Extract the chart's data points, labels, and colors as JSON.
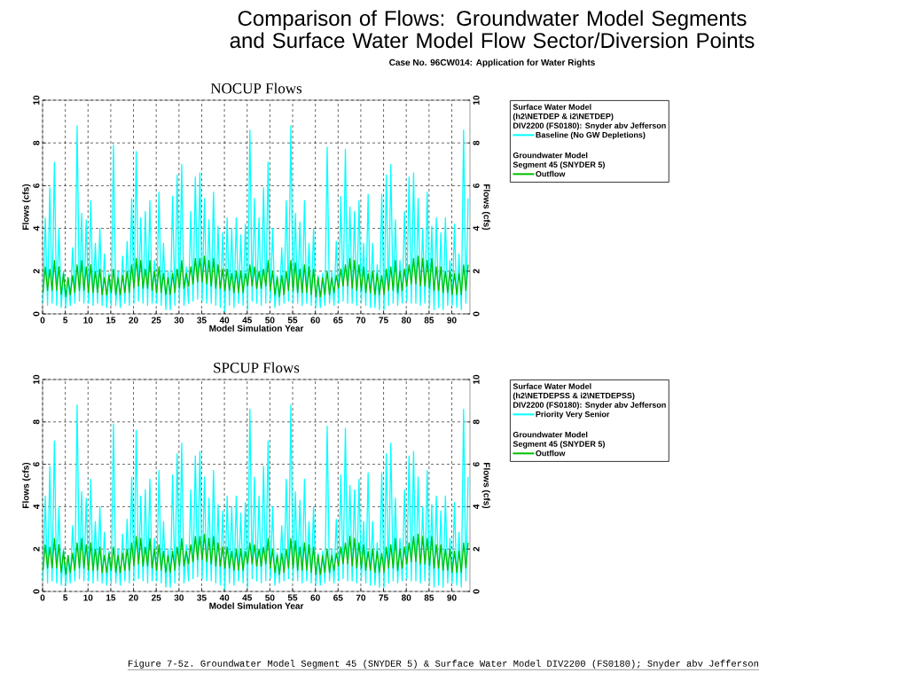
{
  "chart_data": [
    {
      "type": "line",
      "title": "NOCUP Flows",
      "xlabel": "Model Simulation Year",
      "ylabel": "Flows (cfs)",
      "y2label": "Flows (cfs)",
      "xlim": [
        0,
        94
      ],
      "xticks": [
        0,
        5,
        10,
        15,
        20,
        25,
        30,
        35,
        40,
        45,
        50,
        55,
        60,
        65,
        70,
        75,
        80,
        85,
        90
      ],
      "ylim": [
        0,
        10
      ],
      "yticks": [
        0,
        2,
        4,
        6,
        8,
        10
      ],
      "y2lim": [
        0,
        10
      ],
      "y2ticks": [
        0,
        2,
        4,
        6,
        8,
        10
      ],
      "grid": true,
      "legend": "right",
      "marker": "none",
      "line_style": "solid",
      "annotations": [
        "Surface Water Model",
        "(h2\\NETDEP & i2\\NETDEP)",
        "DIV2200 (FS0180): Snyder abv Jefferson",
        "Groundwater Model",
        "Segment 45 (SNYDER 5)"
      ],
      "x": [
        0.1,
        0.6,
        1.1,
        1.6,
        2.1,
        2.6,
        3.1,
        3.6,
        4.1,
        4.6,
        5.1,
        5.6,
        6.1,
        6.6,
        7.1,
        7.6,
        8.1,
        8.6,
        9.1,
        9.6,
        10.1,
        10.6,
        11.1,
        11.6,
        12.1,
        12.6,
        13.1,
        13.6,
        14.1,
        14.6,
        15.1,
        15.6,
        16.1,
        16.6,
        17.1,
        17.6,
        18.1,
        18.6,
        19.1,
        19.6,
        20.1,
        20.6,
        21.1,
        21.6,
        22.1,
        22.6,
        23.1,
        23.6,
        24.1,
        24.6,
        25.1,
        25.6,
        26.1,
        26.6,
        27.1,
        27.6,
        28.1,
        28.6,
        29.1,
        29.6,
        30.1,
        30.6,
        31.1,
        31.6,
        32.1,
        32.6,
        33.1,
        33.6,
        34.1,
        34.6,
        35.1,
        35.6,
        36.1,
        36.6,
        37.1,
        37.6,
        38.1,
        38.6,
        39.1,
        39.6,
        40.1,
        40.6,
        41.1,
        41.6,
        42.1,
        42.6,
        43.1,
        43.6,
        44.1,
        44.6,
        45.1,
        45.6,
        46.1,
        46.6,
        47.1,
        47.6,
        48.1,
        48.6,
        49.1,
        49.6,
        50.1,
        50.6,
        51.1,
        51.6,
        52.1,
        52.6,
        53.1,
        53.6,
        54.1,
        54.6,
        55.1,
        55.6,
        56.1,
        56.6,
        57.1,
        57.6,
        58.1,
        58.6,
        59.1,
        59.6,
        60.1,
        60.6,
        61.1,
        61.6,
        62.1,
        62.6,
        63.1,
        63.6,
        64.1,
        64.6,
        65.1,
        65.6,
        66.1,
        66.6,
        67.1,
        67.6,
        68.1,
        68.6,
        69.1,
        69.6,
        70.1,
        70.6,
        71.1,
        71.6,
        72.1,
        72.6,
        73.1,
        73.6,
        74.1,
        74.6,
        75.1,
        75.6,
        76.1,
        76.6,
        77.1,
        77.6,
        78.1,
        78.6,
        79.1,
        79.6,
        80.1,
        80.6,
        81.1,
        81.6,
        82.1,
        82.6,
        83.1,
        83.6,
        84.1,
        84.6,
        85.1,
        85.6,
        86.1,
        86.6,
        87.1,
        87.6,
        88.1,
        88.6,
        89.1,
        89.6,
        90.1,
        90.6,
        91.1,
        91.6,
        92.1,
        92.6,
        93.1,
        93.6
      ],
      "series": [
        {
          "name": "Baseline (No GW Depletions)",
          "color": "#00ffff",
          "values": [
            0.5,
            4.5,
            0.4,
            5.9,
            0.5,
            7.1,
            0.4,
            4.0,
            0.3,
            2.0,
            0.3,
            1.7,
            0.4,
            3.1,
            0.5,
            8.8,
            0.6,
            4.7,
            0.5,
            4.4,
            0.5,
            5.3,
            0.4,
            3.3,
            0.5,
            4.0,
            0.4,
            2.8,
            0.3,
            1.9,
            0.4,
            7.9,
            0.4,
            2.0,
            0.3,
            2.7,
            0.5,
            3.4,
            0.4,
            5.4,
            0.5,
            7.6,
            0.6,
            4.5,
            0.5,
            4.8,
            0.4,
            5.3,
            0.5,
            2.5,
            0.5,
            5.7,
            0.4,
            3.3,
            0.2,
            2.0,
            0.2,
            5.5,
            0.4,
            6.5,
            0.5,
            7.0,
            0.4,
            2.2,
            0.5,
            4.8,
            0.6,
            6.4,
            0.7,
            6.6,
            0.6,
            5.4,
            0.5,
            4.4,
            0.5,
            5.7,
            0.4,
            4.1,
            0.3,
            3.8,
            0.1,
            4.5,
            0.4,
            4.0,
            0.3,
            4.5,
            0.5,
            3.7,
            0.4,
            4.2,
            0.2,
            8.6,
            0.6,
            5.4,
            0.5,
            4.5,
            0.4,
            5.9,
            0.5,
            7.1,
            0.6,
            4.0,
            0.3,
            1.8,
            0.4,
            3.1,
            0.5,
            5.3,
            0.6,
            8.8,
            0.5,
            4.7,
            0.5,
            4.3,
            0.4,
            5.3,
            0.5,
            3.3,
            0.4,
            4.0,
            0.3,
            1.8,
            0.3,
            1.9,
            0.4,
            7.8,
            0.5,
            2.0,
            0.4,
            3.4,
            0.5,
            5.5,
            0.6,
            7.7,
            0.5,
            5.0,
            0.5,
            4.8,
            0.4,
            5.3,
            0.5,
            3.3,
            0.4,
            5.6,
            0.3,
            3.3,
            0.3,
            2.3,
            0.2,
            5.6,
            0.2,
            6.5,
            0.4,
            7.0,
            0.5,
            4.4,
            0.4,
            2.5,
            0.5,
            4.8,
            0.6,
            6.4,
            0.5,
            6.6,
            0.5,
            5.4,
            0.4,
            4.0,
            0.5,
            5.7,
            0.3,
            4.1,
            0.2,
            4.5,
            0.3,
            3.8,
            0.2,
            4.5,
            0.4,
            2.5,
            0.4,
            4.2,
            0.3,
            2.8,
            0.2,
            8.6,
            0.5,
            5.4
          ]
        },
        {
          "name": "Outflow",
          "color": "#00c000",
          "values": [
            1.0,
            2.2,
            1.1,
            2.1,
            1.1,
            2.5,
            1.1,
            2.2,
            0.9,
            1.9,
            0.8,
            1.7,
            0.9,
            1.8,
            1.0,
            2.3,
            1.1,
            2.5,
            1.1,
            2.2,
            1.0,
            2.3,
            1.0,
            2.0,
            1.0,
            2.1,
            0.9,
            1.7,
            0.9,
            1.8,
            1.0,
            2.1,
            0.9,
            1.7,
            0.9,
            1.8,
            1.0,
            2.0,
            1.0,
            2.3,
            1.2,
            2.6,
            1.3,
            2.5,
            1.2,
            2.1,
            1.2,
            2.5,
            1.1,
            2.0,
            1.0,
            2.2,
            1.0,
            1.9,
            0.9,
            1.7,
            0.9,
            1.9,
            1.0,
            2.1,
            1.2,
            2.5,
            1.2,
            1.9,
            1.3,
            2.2,
            1.4,
            2.6,
            1.5,
            2.6,
            1.5,
            2.7,
            1.4,
            2.5,
            1.3,
            2.6,
            1.2,
            2.3,
            1.2,
            2.1,
            1.1,
            2.1,
            1.1,
            1.9,
            1.0,
            2.0,
            1.0,
            2.0,
            1.0,
            1.9,
            1.3,
            2.3,
            1.3,
            2.2,
            1.2,
            2.0,
            1.2,
            2.1,
            1.3,
            2.5,
            1.1,
            2.0,
            0.9,
            1.7,
            0.8,
            1.8,
            0.9,
            2.0,
            1.1,
            2.5,
            1.1,
            2.4,
            1.0,
            2.1,
            1.0,
            2.3,
            1.0,
            2.2,
            0.9,
            2.1,
            0.8,
            1.7,
            0.8,
            1.7,
            0.9,
            2.0,
            0.9,
            1.7,
            1.0,
            1.8,
            1.2,
            2.1,
            1.3,
            2.3,
            1.3,
            2.6,
            1.2,
            2.5,
            1.1,
            2.3,
            1.1,
            2.2,
            1.0,
            1.9,
            1.0,
            2.0,
            0.9,
            1.9,
            0.9,
            1.8,
            0.9,
            2.1,
            1.1,
            2.2,
            1.1,
            2.5,
            1.0,
            2.0,
            1.1,
            2.1,
            1.3,
            2.3,
            1.4,
            2.6,
            1.4,
            2.7,
            1.3,
            2.6,
            1.3,
            2.5,
            1.2,
            2.6,
            1.1,
            2.2,
            1.1,
            2.2,
            1.0,
            2.0,
            1.0,
            2.0,
            0.9,
            1.9,
            0.9,
            1.9,
            0.9,
            2.3,
            1.1,
            2.3
          ]
        }
      ]
    },
    {
      "type": "line",
      "title": "SPCUP Flows",
      "xlabel": "Model Simulation Year",
      "ylabel": "Flows (cfs)",
      "y2label": "Flows (cfs)",
      "xlim": [
        0,
        94
      ],
      "xticks": [
        0,
        5,
        10,
        15,
        20,
        25,
        30,
        35,
        40,
        45,
        50,
        55,
        60,
        65,
        70,
        75,
        80,
        85,
        90
      ],
      "ylim": [
        0,
        10
      ],
      "yticks": [
        0,
        2,
        4,
        6,
        8,
        10
      ],
      "y2lim": [
        0,
        10
      ],
      "y2ticks": [
        0,
        2,
        4,
        6,
        8,
        10
      ],
      "grid": true,
      "legend": "right",
      "marker": "none",
      "line_style": "solid",
      "annotations": [
        "Surface Water Model",
        "(h2\\NETDEPSS & i2\\NETDEPSS)",
        "DIV2200 (FS0180): Snyder abv Jefferson",
        "Groundwater Model",
        "Segment 45 (SNYDER 5)"
      ],
      "x": [
        0.1,
        0.6,
        1.1,
        1.6,
        2.1,
        2.6,
        3.1,
        3.6,
        4.1,
        4.6,
        5.1,
        5.6,
        6.1,
        6.6,
        7.1,
        7.6,
        8.1,
        8.6,
        9.1,
        9.6,
        10.1,
        10.6,
        11.1,
        11.6,
        12.1,
        12.6,
        13.1,
        13.6,
        14.1,
        14.6,
        15.1,
        15.6,
        16.1,
        16.6,
        17.1,
        17.6,
        18.1,
        18.6,
        19.1,
        19.6,
        20.1,
        20.6,
        21.1,
        21.6,
        22.1,
        22.6,
        23.1,
        23.6,
        24.1,
        24.6,
        25.1,
        25.6,
        26.1,
        26.6,
        27.1,
        27.6,
        28.1,
        28.6,
        29.1,
        29.6,
        30.1,
        30.6,
        31.1,
        31.6,
        32.1,
        32.6,
        33.1,
        33.6,
        34.1,
        34.6,
        35.1,
        35.6,
        36.1,
        36.6,
        37.1,
        37.6,
        38.1,
        38.6,
        39.1,
        39.6,
        40.1,
        40.6,
        41.1,
        41.6,
        42.1,
        42.6,
        43.1,
        43.6,
        44.1,
        44.6,
        45.1,
        45.6,
        46.1,
        46.6,
        47.1,
        47.6,
        48.1,
        48.6,
        49.1,
        49.6,
        50.1,
        50.6,
        51.1,
        51.6,
        52.1,
        52.6,
        53.1,
        53.6,
        54.1,
        54.6,
        55.1,
        55.6,
        56.1,
        56.6,
        57.1,
        57.6,
        58.1,
        58.6,
        59.1,
        59.6,
        60.1,
        60.6,
        61.1,
        61.6,
        62.1,
        62.6,
        63.1,
        63.6,
        64.1,
        64.6,
        65.1,
        65.6,
        66.1,
        66.6,
        67.1,
        67.6,
        68.1,
        68.6,
        69.1,
        69.6,
        70.1,
        70.6,
        71.1,
        71.6,
        72.1,
        72.6,
        73.1,
        73.6,
        74.1,
        74.6,
        75.1,
        75.6,
        76.1,
        76.6,
        77.1,
        77.6,
        78.1,
        78.6,
        79.1,
        79.6,
        80.1,
        80.6,
        81.1,
        81.6,
        82.1,
        82.6,
        83.1,
        83.6,
        84.1,
        84.6,
        85.1,
        85.6,
        86.1,
        86.6,
        87.1,
        87.6,
        88.1,
        88.6,
        89.1,
        89.6,
        90.1,
        90.6,
        91.1,
        91.6,
        92.1,
        92.6,
        93.1,
        93.6
      ],
      "series": [
        {
          "name": "Priority Very Senior",
          "color": "#00ffff",
          "values": [
            0.5,
            4.5,
            0.4,
            5.9,
            0.5,
            7.1,
            0.4,
            4.0,
            0.3,
            2.0,
            0.3,
            1.7,
            0.4,
            3.1,
            0.5,
            8.8,
            0.6,
            4.7,
            0.5,
            4.4,
            0.5,
            5.3,
            0.4,
            3.3,
            0.5,
            4.0,
            0.4,
            2.8,
            0.3,
            1.9,
            0.4,
            7.9,
            0.4,
            2.0,
            0.3,
            2.7,
            0.5,
            3.4,
            0.4,
            5.4,
            0.5,
            7.6,
            0.6,
            4.5,
            0.5,
            4.8,
            0.4,
            5.3,
            0.5,
            2.5,
            0.5,
            5.7,
            0.4,
            3.3,
            0.2,
            2.0,
            0.2,
            5.5,
            0.4,
            6.5,
            0.5,
            7.0,
            0.4,
            2.2,
            0.5,
            4.8,
            0.6,
            6.4,
            0.7,
            6.6,
            0.6,
            5.4,
            0.5,
            4.4,
            0.5,
            5.7,
            0.4,
            4.1,
            0.3,
            3.8,
            0.1,
            4.5,
            0.4,
            4.0,
            0.3,
            4.5,
            0.5,
            3.7,
            0.4,
            4.2,
            0.2,
            8.6,
            0.6,
            5.4,
            0.5,
            4.5,
            0.4,
            5.9,
            0.5,
            7.1,
            0.6,
            4.0,
            0.3,
            1.8,
            0.4,
            3.1,
            0.5,
            5.3,
            0.6,
            8.8,
            0.5,
            4.7,
            0.5,
            4.3,
            0.4,
            5.3,
            0.5,
            3.3,
            0.4,
            4.0,
            0.3,
            1.8,
            0.3,
            1.9,
            0.4,
            7.8,
            0.5,
            2.0,
            0.4,
            3.4,
            0.5,
            5.5,
            0.6,
            7.7,
            0.5,
            5.0,
            0.5,
            4.8,
            0.4,
            5.3,
            0.5,
            3.3,
            0.4,
            5.6,
            0.3,
            3.3,
            0.3,
            2.3,
            0.2,
            5.6,
            0.2,
            6.5,
            0.4,
            7.0,
            0.5,
            4.4,
            0.4,
            2.5,
            0.5,
            4.8,
            0.6,
            6.4,
            0.5,
            6.6,
            0.5,
            5.4,
            0.4,
            4.0,
            0.5,
            5.7,
            0.3,
            4.1,
            0.2,
            4.5,
            0.3,
            3.8,
            0.2,
            4.5,
            0.4,
            2.5,
            0.4,
            4.2,
            0.3,
            2.8,
            0.2,
            8.6,
            0.5,
            5.4
          ]
        },
        {
          "name": "Outflow",
          "color": "#00c000",
          "values": [
            1.0,
            2.2,
            1.1,
            2.1,
            1.1,
            2.5,
            1.1,
            2.2,
            0.9,
            1.9,
            0.8,
            1.7,
            0.9,
            1.8,
            1.0,
            2.3,
            1.1,
            2.5,
            1.1,
            2.2,
            1.0,
            2.3,
            1.0,
            2.0,
            1.0,
            2.1,
            0.9,
            1.7,
            0.9,
            1.8,
            1.0,
            2.1,
            0.9,
            1.7,
            0.9,
            1.8,
            1.0,
            2.0,
            1.0,
            2.3,
            1.2,
            2.6,
            1.3,
            2.5,
            1.2,
            2.1,
            1.2,
            2.5,
            1.1,
            2.0,
            1.0,
            2.2,
            1.0,
            1.9,
            0.9,
            1.7,
            0.9,
            1.9,
            1.0,
            2.1,
            1.2,
            2.5,
            1.2,
            1.9,
            1.3,
            2.2,
            1.4,
            2.6,
            1.5,
            2.6,
            1.5,
            2.7,
            1.4,
            2.5,
            1.3,
            2.6,
            1.2,
            2.3,
            1.2,
            2.1,
            1.1,
            2.1,
            1.1,
            1.9,
            1.0,
            2.0,
            1.0,
            2.0,
            1.0,
            1.9,
            1.3,
            2.3,
            1.3,
            2.2,
            1.2,
            2.0,
            1.2,
            2.1,
            1.3,
            2.5,
            1.1,
            2.0,
            0.9,
            1.7,
            0.8,
            1.8,
            0.9,
            2.0,
            1.1,
            2.5,
            1.1,
            2.4,
            1.0,
            2.1,
            1.0,
            2.3,
            1.0,
            2.2,
            0.9,
            2.1,
            0.8,
            1.7,
            0.8,
            1.7,
            0.9,
            2.0,
            0.9,
            1.7,
            1.0,
            1.8,
            1.2,
            2.1,
            1.3,
            2.3,
            1.3,
            2.6,
            1.2,
            2.5,
            1.1,
            2.3,
            1.1,
            2.2,
            1.0,
            1.9,
            1.0,
            2.0,
            0.9,
            1.9,
            0.9,
            1.8,
            0.9,
            2.1,
            1.1,
            2.2,
            1.1,
            2.5,
            1.0,
            2.0,
            1.1,
            2.1,
            1.3,
            2.3,
            1.4,
            2.6,
            1.4,
            2.7,
            1.3,
            2.6,
            1.3,
            2.5,
            1.2,
            2.6,
            1.1,
            2.2,
            1.1,
            2.2,
            1.0,
            2.0,
            1.0,
            2.0,
            0.9,
            1.9,
            0.9,
            1.9,
            0.9,
            2.3,
            1.1,
            2.3
          ]
        }
      ]
    },
    {
      "type": "other",
      "title": "Comparison of Flows: Groundwater Model Segments and Surface Water Model Flow Sector/Diversion Points",
      "subtitle": "Case No. 96CW014: Application for Water Rights",
      "annotations": [
        "Figure 7-5z. Groundwater Model Segment 45 (SNYDER 5) & Surface Water Model DIV2200 (FS0180); Snyder abv Jefferson"
      ]
    }
  ]
}
